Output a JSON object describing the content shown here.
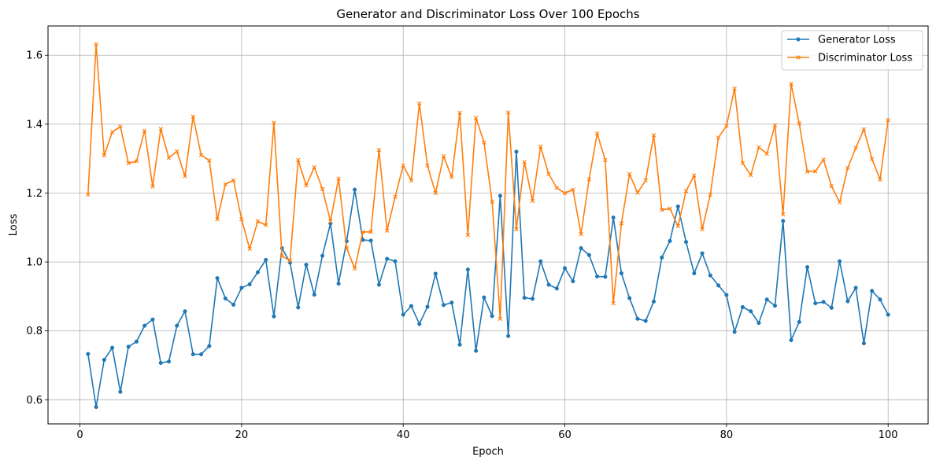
{
  "chart_data": {
    "type": "line",
    "title": "Generator and Discriminator Loss Over 100 Epochs",
    "xlabel": "Epoch",
    "ylabel": "Loss",
    "xlim": [
      -3.95,
      104.95
    ],
    "ylim": [
      0.53,
      1.685
    ],
    "x_ticks": [
      0,
      20,
      40,
      60,
      80,
      100
    ],
    "y_ticks": [
      0.6,
      0.8,
      1.0,
      1.2,
      1.4,
      1.6
    ],
    "x_tick_labels": [
      "0",
      "20",
      "40",
      "60",
      "80",
      "100"
    ],
    "y_tick_labels": [
      "0.6",
      "0.8",
      "1.0",
      "1.2",
      "1.4",
      "1.6"
    ],
    "grid": true,
    "legend": "top-right",
    "x": [
      1,
      2,
      3,
      4,
      5,
      6,
      7,
      8,
      9,
      10,
      11,
      12,
      13,
      14,
      15,
      16,
      17,
      18,
      19,
      20,
      21,
      22,
      23,
      24,
      25,
      26,
      27,
      28,
      29,
      30,
      31,
      32,
      33,
      34,
      35,
      36,
      37,
      38,
      39,
      40,
      41,
      42,
      43,
      44,
      45,
      46,
      47,
      48,
      49,
      50,
      51,
      52,
      53,
      54,
      55,
      56,
      57,
      58,
      59,
      60,
      61,
      62,
      63,
      64,
      65,
      66,
      67,
      68,
      69,
      70,
      71,
      72,
      73,
      74,
      75,
      76,
      77,
      78,
      79,
      80,
      81,
      82,
      83,
      84,
      85,
      86,
      87,
      88,
      89,
      90,
      91,
      92,
      93,
      94,
      95,
      96,
      97,
      98,
      99,
      100
    ],
    "series": [
      {
        "name": "Generator Loss",
        "color": "#1f77b4",
        "marker": "circle",
        "values": [
          0.733,
          0.579,
          0.716,
          0.751,
          0.623,
          0.754,
          0.769,
          0.815,
          0.833,
          0.707,
          0.711,
          0.815,
          0.857,
          0.732,
          0.732,
          0.756,
          0.953,
          0.894,
          0.876,
          0.925,
          0.935,
          0.97,
          1.006,
          0.842,
          1.04,
          0.998,
          0.868,
          0.992,
          0.905,
          1.018,
          1.112,
          0.937,
          1.06,
          1.21,
          1.064,
          1.062,
          0.934,
          1.009,
          1.002,
          0.847,
          0.872,
          0.82,
          0.87,
          0.966,
          0.875,
          0.882,
          0.76,
          0.978,
          0.742,
          0.897,
          0.843,
          1.192,
          0.785,
          1.32,
          0.896,
          0.893,
          1.002,
          0.934,
          0.923,
          0.982,
          0.944,
          1.04,
          1.02,
          0.958,
          0.957,
          1.129,
          0.967,
          0.895,
          0.835,
          0.829,
          0.885,
          1.013,
          1.061,
          1.161,
          1.058,
          0.967,
          1.025,
          0.961,
          0.932,
          0.904,
          0.797,
          0.869,
          0.857,
          0.823,
          0.891,
          0.873,
          1.119,
          0.773,
          0.826,
          0.985,
          0.88,
          0.884,
          0.867,
          1.002,
          0.886,
          0.925,
          0.764,
          0.916,
          0.891,
          0.847
        ]
      },
      {
        "name": "Discriminator Loss",
        "color": "#ff7f0e",
        "marker": "x",
        "values": [
          1.196,
          1.632,
          1.309,
          1.377,
          1.393,
          1.287,
          1.292,
          1.381,
          1.219,
          1.386,
          1.302,
          1.321,
          1.249,
          1.422,
          1.31,
          1.295,
          1.124,
          1.226,
          1.237,
          1.124,
          1.038,
          1.118,
          1.107,
          1.404,
          1.017,
          1.004,
          1.296,
          1.222,
          1.275,
          1.212,
          1.118,
          1.242,
          1.04,
          0.981,
          1.087,
          1.087,
          1.325,
          1.091,
          1.189,
          1.28,
          1.236,
          1.46,
          1.28,
          1.2,
          1.307,
          1.246,
          1.433,
          1.078,
          1.418,
          1.347,
          1.175,
          0.835,
          1.434,
          1.095,
          1.29,
          1.177,
          1.335,
          1.255,
          1.215,
          1.2,
          1.21,
          1.081,
          1.24,
          1.373,
          1.296,
          0.88,
          1.112,
          1.255,
          1.201,
          1.237,
          1.368,
          1.151,
          1.155,
          1.104,
          1.206,
          1.251,
          1.095,
          1.195,
          1.361,
          1.395,
          1.503,
          1.287,
          1.252,
          1.333,
          1.314,
          1.397,
          1.138,
          1.517,
          1.402,
          1.262,
          1.263,
          1.297,
          1.22,
          1.173,
          1.273,
          1.331,
          1.385,
          1.299,
          1.239,
          1.412
        ]
      }
    ]
  }
}
